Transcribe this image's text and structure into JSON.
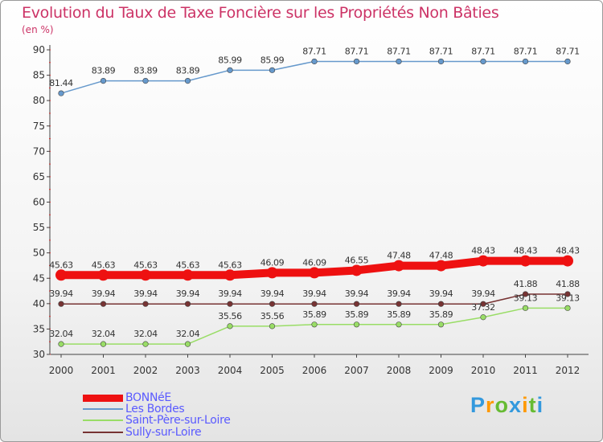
{
  "title": "Evolution du Taux de Taxe Foncière sur les Propriétés Non Bâties",
  "unit_label": "(en %)",
  "brand": {
    "letters": [
      "P",
      "r",
      "o",
      "x",
      "i",
      "t",
      "i"
    ],
    "colors": [
      "#3399dd",
      "#ff9900",
      "#66bb33",
      "#3399dd",
      "#ff9900",
      "#66bb33",
      "#3399dd"
    ]
  },
  "colors": {
    "title": "#cc3366",
    "tick": "#333333",
    "legend_text": "#5a5aff"
  },
  "chart_data": {
    "type": "line",
    "title": "Evolution du Taux de Taxe Foncière sur les Propriétés Non Bâties",
    "ylabel": "(en %)",
    "xlabel": "",
    "ylim": [
      30,
      90
    ],
    "yticks": [
      "30",
      "35",
      "40",
      "45",
      "50",
      "55",
      "60",
      "65",
      "70",
      "75",
      "80",
      "85",
      "90"
    ],
    "grid": false,
    "legend": "bottom-left",
    "x": [
      "2000",
      "2001",
      "2002",
      "2003",
      "2004",
      "2005",
      "2006",
      "2007",
      "2008",
      "2009",
      "2010",
      "2011",
      "2012"
    ],
    "series": [
      {
        "name": "BONNéE",
        "color": "#ee1111",
        "width": 10,
        "values": [
          45.63,
          45.63,
          45.63,
          45.63,
          45.63,
          46.09,
          46.09,
          46.55,
          47.48,
          47.48,
          48.43,
          48.43,
          48.43
        ],
        "labels": [
          "45.63",
          "45.63",
          "45.63",
          "45.63",
          "45.63",
          "46.09",
          "46.09",
          "46.55",
          "47.48",
          "47.48",
          "48.43",
          "48.43",
          "48.43"
        ]
      },
      {
        "name": "Les Bordes",
        "color": "#6699cc",
        "width": 1.5,
        "values": [
          81.44,
          83.89,
          83.89,
          83.89,
          85.99,
          85.99,
          87.71,
          87.71,
          87.71,
          87.71,
          87.71,
          87.71,
          87.71
        ],
        "labels": [
          "81.44",
          "83.89",
          "83.89",
          "83.89",
          "85.99",
          "85.99",
          "87.71",
          "87.71",
          "87.71",
          "87.71",
          "87.71",
          "87.71",
          "87.71"
        ]
      },
      {
        "name": "Saint-Père-sur-Loire",
        "color": "#99dd66",
        "width": 1.5,
        "values": [
          32.04,
          32.04,
          32.04,
          32.04,
          35.56,
          35.56,
          35.89,
          35.89,
          35.89,
          35.89,
          37.32,
          39.13,
          39.13
        ],
        "labels": [
          "32.04",
          "32.04",
          "32.04",
          "32.04",
          "35.56",
          "35.56",
          "35.89",
          "35.89",
          "35.89",
          "35.89",
          "37.32",
          "39.13",
          "39.13"
        ]
      },
      {
        "name": "Sully-sur-Loire",
        "color": "#773333",
        "width": 1.5,
        "values": [
          39.94,
          39.94,
          39.94,
          39.94,
          39.94,
          39.94,
          39.94,
          39.94,
          39.94,
          39.94,
          39.94,
          41.88,
          41.88
        ],
        "labels": [
          "39.94",
          "39.94",
          "39.94",
          "39.94",
          "39.94",
          "39.94",
          "39.94",
          "39.94",
          "39.94",
          "39.94",
          "39.94",
          "41.88",
          "41.88"
        ]
      }
    ]
  }
}
